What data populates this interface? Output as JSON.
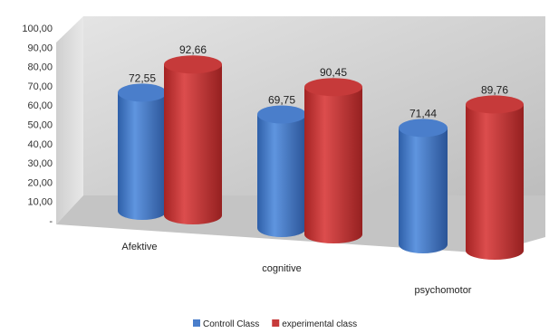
{
  "chart_data": {
    "type": "bar",
    "style": "3d-cylinder",
    "title": "",
    "xlabel": "",
    "ylabel": "",
    "ylim": [
      0,
      100
    ],
    "y_ticks": [
      "-",
      "10,00",
      "20,00",
      "30,00",
      "40,00",
      "50,00",
      "60,00",
      "70,00",
      "80,00",
      "90,00",
      "100,00"
    ],
    "categories": [
      "Afektive",
      "cognitive",
      "psychomotor"
    ],
    "series": [
      {
        "name": "Controll Class",
        "color": "#4a7ecb",
        "values": [
          72.55,
          69.75,
          71.44
        ],
        "labels": [
          "72,55",
          "69,75",
          "71,44"
        ]
      },
      {
        "name": "experimental class",
        "color": "#c63a3a",
        "values": [
          92.66,
          90.45,
          89.76
        ],
        "labels": [
          "92,66",
          "90,45",
          "89,76"
        ]
      }
    ],
    "legend": "bottom",
    "grid": false
  }
}
